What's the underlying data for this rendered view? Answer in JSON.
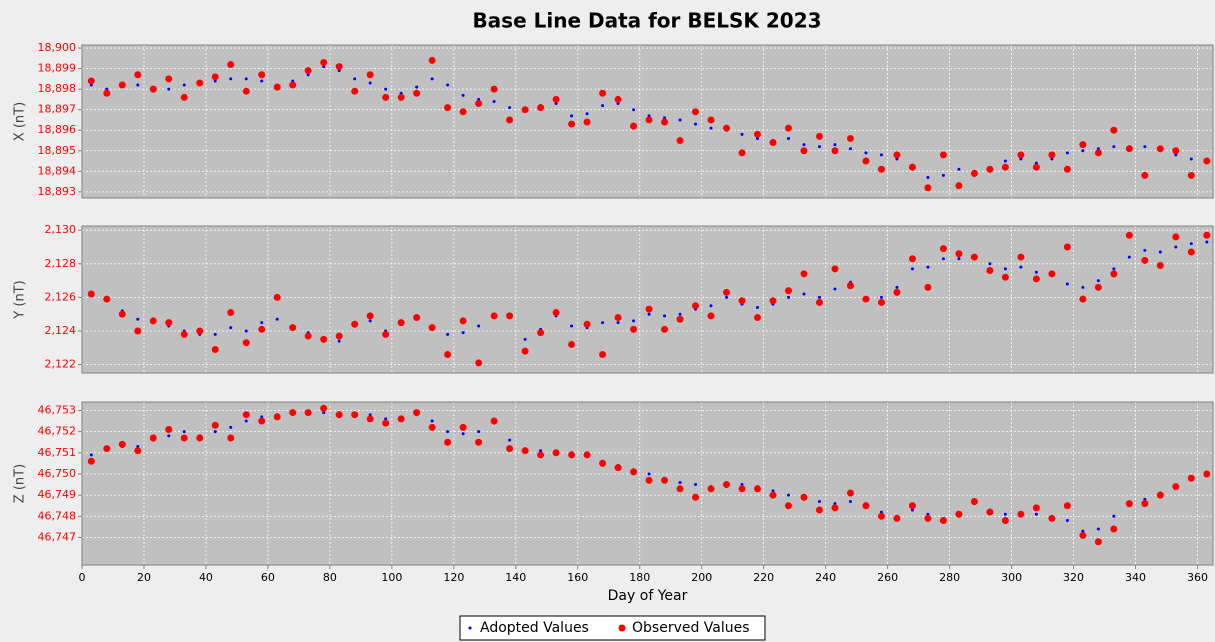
{
  "chart_data": [
    {
      "type": "scatter",
      "title": "Base Line Data for BELSK 2023",
      "ylabel": "X (nT)",
      "xlim": [
        0,
        365
      ],
      "ylim": [
        18892.7,
        18900.15
      ],
      "yticks": [
        {
          "value": 18893,
          "label": "18,893"
        },
        {
          "value": 18894,
          "label": "18,894"
        },
        {
          "value": 18895,
          "label": "18,895"
        },
        {
          "value": 18896,
          "label": "18,896"
        },
        {
          "value": 18897,
          "label": "18,897"
        },
        {
          "value": 18898,
          "label": "18,898"
        },
        {
          "value": 18899,
          "label": "18,899"
        },
        {
          "value": 18900,
          "label": "18,900"
        }
      ],
      "grid": true,
      "x": [
        3,
        8,
        13,
        18,
        23,
        28,
        33,
        38,
        43,
        48,
        53,
        58,
        63,
        68,
        73,
        78,
        83,
        88,
        93,
        98,
        103,
        108,
        113,
        118,
        123,
        128,
        133,
        138,
        143,
        148,
        153,
        158,
        163,
        168,
        173,
        178,
        183,
        188,
        193,
        198,
        203,
        208,
        213,
        218,
        223,
        228,
        233,
        238,
        243,
        248,
        253,
        258,
        263,
        268,
        273,
        278,
        283,
        288,
        293,
        298,
        303,
        308,
        313,
        318,
        323,
        328,
        333,
        338,
        343,
        348,
        353,
        358,
        363
      ],
      "series": [
        {
          "name": "Adopted Values",
          "color": "#0000ff",
          "values": [
            18898.2,
            18898.0,
            18898.3,
            18898.2,
            18897.9,
            18898.0,
            18898.2,
            18898.3,
            18898.4,
            18898.5,
            18898.5,
            18898.4,
            18898.2,
            18898.4,
            18898.7,
            18899.1,
            18898.9,
            18898.5,
            18898.3,
            18898.0,
            18897.8,
            18898.1,
            18898.5,
            18898.2,
            18897.7,
            18897.5,
            18897.4,
            18897.1,
            18897.0,
            18897.2,
            18897.3,
            18896.7,
            18896.8,
            18897.2,
            18897.3,
            18897.0,
            18896.7,
            18896.6,
            18896.5,
            18896.3,
            18896.1,
            18896.0,
            18895.8,
            18895.6,
            18895.5,
            18895.6,
            18895.3,
            18895.2,
            18895.3,
            18895.1,
            18894.9,
            18894.8,
            18894.6,
            18894.3,
            18893.7,
            18893.8,
            18894.1,
            18893.8,
            18894.0,
            18894.5,
            18894.6,
            18894.4,
            18894.6,
            18894.9,
            18895.0,
            18895.1,
            18895.2,
            18895.2,
            18895.2,
            18895.0,
            18894.8,
            18894.6,
            18894.5
          ]
        },
        {
          "name": "Observed Values",
          "color": "#ff0000",
          "values": [
            18898.4,
            18897.8,
            18898.2,
            18898.7,
            18898.0,
            18898.5,
            18897.6,
            18898.3,
            18898.6,
            18899.2,
            18897.9,
            18898.7,
            18898.1,
            18898.2,
            18898.9,
            18899.3,
            18899.1,
            18897.9,
            18898.7,
            18897.6,
            18897.6,
            18897.8,
            18899.4,
            18897.1,
            18896.9,
            18897.3,
            18898.0,
            18896.5,
            18897.0,
            18897.1,
            18897.5,
            18896.3,
            18896.4,
            18897.8,
            18897.5,
            18896.2,
            18896.5,
            18896.4,
            18895.5,
            18896.9,
            18896.5,
            18896.1,
            18894.9,
            18895.8,
            18895.4,
            18896.1,
            18895.0,
            18895.7,
            18895.0,
            18895.6,
            18894.5,
            18894.1,
            18894.8,
            18894.2,
            18893.2,
            18894.8,
            18893.3,
            18893.9,
            18894.1,
            18894.2,
            18894.8,
            18894.2,
            18894.8,
            18894.1,
            18895.3,
            18894.9,
            18896.0,
            18895.1,
            18893.8,
            18895.1,
            18895.0,
            18893.8,
            18894.5
          ]
        }
      ]
    },
    {
      "type": "scatter",
      "ylabel": "Y (nT)",
      "xlim": [
        0,
        365
      ],
      "ylim": [
        2121.5,
        2130.25
      ],
      "yticks": [
        {
          "value": 2122,
          "label": "2,122"
        },
        {
          "value": 2124,
          "label": "2,124"
        },
        {
          "value": 2126,
          "label": "2,126"
        },
        {
          "value": 2128,
          "label": "2,128"
        },
        {
          "value": 2130,
          "label": "2,130"
        }
      ],
      "grid": true,
      "x": [
        3,
        8,
        13,
        18,
        23,
        28,
        33,
        38,
        43,
        48,
        53,
        58,
        63,
        68,
        73,
        78,
        83,
        88,
        93,
        98,
        103,
        108,
        113,
        118,
        123,
        128,
        133,
        138,
        143,
        148,
        153,
        158,
        163,
        168,
        173,
        178,
        183,
        188,
        193,
        198,
        203,
        208,
        213,
        218,
        223,
        228,
        233,
        238,
        243,
        248,
        253,
        258,
        263,
        268,
        273,
        278,
        283,
        288,
        293,
        298,
        303,
        308,
        313,
        318,
        323,
        328,
        333,
        338,
        343,
        348,
        353,
        358,
        363
      ],
      "series": [
        {
          "name": "Adopted Values",
          "color": "#0000ff",
          "values": [
            2126.2,
            2126.0,
            2125.2,
            2124.7,
            2124.5,
            2124.3,
            2124.0,
            2123.8,
            2123.8,
            2124.2,
            2124.0,
            2124.5,
            2124.7,
            2124.3,
            2123.9,
            2123.5,
            2123.4,
            2124.5,
            2124.6,
            2124.0,
            2124.4,
            2124.7,
            2124.2,
            2123.8,
            2123.9,
            2124.3,
            2124.8,
            2124.8,
            2123.5,
            2124.1,
            2124.9,
            2124.3,
            2124.2,
            2124.5,
            2124.5,
            2124.6,
            2125.0,
            2124.9,
            2125.0,
            2125.3,
            2125.5,
            2126.0,
            2125.6,
            2125.4,
            2125.6,
            2126.0,
            2126.2,
            2126.0,
            2126.5,
            2126.9,
            2126.0,
            2126.0,
            2126.6,
            2127.7,
            2127.8,
            2128.3,
            2128.3,
            2128.3,
            2128.0,
            2127.7,
            2127.8,
            2127.5,
            2127.5,
            2126.8,
            2126.6,
            2127.0,
            2127.7,
            2128.4,
            2128.8,
            2128.7,
            2129.0,
            2129.2,
            2129.3
          ]
        },
        {
          "name": "Observed Values",
          "color": "#ff0000",
          "values": [
            2126.2,
            2125.9,
            2125.0,
            2124.0,
            2124.6,
            2124.5,
            2123.8,
            2124.0,
            2122.9,
            2125.1,
            2123.3,
            2124.1,
            2126.0,
            2124.2,
            2123.7,
            2123.5,
            2123.7,
            2124.4,
            2124.9,
            2123.8,
            2124.5,
            2124.8,
            2124.2,
            2122.6,
            2124.6,
            2122.1,
            2124.9,
            2124.9,
            2122.8,
            2123.9,
            2125.1,
            2123.2,
            2124.4,
            2122.6,
            2124.8,
            2124.1,
            2125.3,
            2124.1,
            2124.7,
            2125.5,
            2124.9,
            2126.3,
            2125.8,
            2124.8,
            2125.8,
            2126.4,
            2127.4,
            2125.7,
            2127.7,
            2126.7,
            2125.9,
            2125.7,
            2126.3,
            2128.3,
            2126.6,
            2128.9,
            2128.6,
            2128.4,
            2127.6,
            2127.2,
            2128.4,
            2127.1,
            2127.4,
            2129.0,
            2125.9,
            2126.6,
            2127.4,
            2129.7,
            2128.2,
            2127.9,
            2129.6,
            2128.7,
            2129.7
          ]
        }
      ]
    },
    {
      "type": "scatter",
      "ylabel": "Z (nT)",
      "xlabel": "Day of Year",
      "xlim": [
        0,
        365
      ],
      "ylim": [
        46745.7,
        46753.4
      ],
      "xticks": [
        0,
        20,
        40,
        60,
        80,
        100,
        120,
        140,
        160,
        180,
        200,
        220,
        240,
        260,
        280,
        300,
        320,
        340,
        360
      ],
      "yticks": [
        {
          "value": 46747,
          "label": "46,747"
        },
        {
          "value": 46748,
          "label": "46,748"
        },
        {
          "value": 46749,
          "label": "46,749"
        },
        {
          "value": 46750,
          "label": "46,750"
        },
        {
          "value": 46751,
          "label": "46,751"
        },
        {
          "value": 46752,
          "label": "46,752"
        },
        {
          "value": 46753,
          "label": "46,753"
        }
      ],
      "grid": true,
      "x": [
        3,
        8,
        13,
        18,
        23,
        28,
        33,
        38,
        43,
        48,
        53,
        58,
        63,
        68,
        73,
        78,
        83,
        88,
        93,
        98,
        103,
        108,
        113,
        118,
        123,
        128,
        133,
        138,
        143,
        148,
        153,
        158,
        163,
        168,
        173,
        178,
        183,
        188,
        193,
        198,
        203,
        208,
        213,
        218,
        223,
        228,
        233,
        238,
        243,
        248,
        253,
        258,
        263,
        268,
        273,
        278,
        283,
        288,
        293,
        298,
        303,
        308,
        313,
        318,
        323,
        328,
        333,
        338,
        343,
        348,
        353,
        358,
        363
      ],
      "series": [
        {
          "name": "Adopted Values",
          "color": "#0000ff",
          "values": [
            46750.9,
            46751.2,
            46751.3,
            46751.3,
            46751.6,
            46751.8,
            46752.0,
            46751.8,
            46752.0,
            46752.2,
            46752.5,
            46752.7,
            46752.8,
            46752.9,
            46752.9,
            46752.9,
            46752.9,
            46752.8,
            46752.8,
            46752.6,
            46752.6,
            46752.8,
            46752.5,
            46752.0,
            46751.9,
            46752.0,
            46752.4,
            46751.6,
            46751.2,
            46751.1,
            46751.1,
            46751.0,
            46751.0,
            46750.6,
            46750.4,
            46750.2,
            46750.0,
            46749.8,
            46749.6,
            46749.5,
            46749.4,
            46749.4,
            46749.5,
            46749.4,
            46749.2,
            46749.0,
            46748.8,
            46748.7,
            46748.6,
            46748.7,
            46748.6,
            46748.2,
            46748.0,
            46748.3,
            46748.1,
            46747.9,
            46748.0,
            46748.6,
            46748.3,
            46748.1,
            46748.1,
            46748.1,
            46747.9,
            46747.8,
            46747.3,
            46747.4,
            46748.0,
            46748.5,
            46748.8,
            46749.1,
            46749.4,
            46749.8,
            46750.0
          ]
        },
        {
          "name": "Observed Values",
          "color": "#ff0000",
          "values": [
            46750.6,
            46751.2,
            46751.4,
            46751.1,
            46751.7,
            46752.1,
            46751.7,
            46751.7,
            46752.3,
            46751.7,
            46752.8,
            46752.5,
            46752.7,
            46752.9,
            46752.9,
            46753.1,
            46752.8,
            46752.8,
            46752.6,
            46752.4,
            46752.6,
            46752.9,
            46752.2,
            46751.5,
            46752.2,
            46751.5,
            46752.5,
            46751.2,
            46751.1,
            46750.9,
            46751.0,
            46750.9,
            46750.9,
            46750.5,
            46750.3,
            46750.1,
            46749.7,
            46749.7,
            46749.3,
            46748.9,
            46749.3,
            46749.5,
            46749.3,
            46749.3,
            46749.0,
            46748.5,
            46748.9,
            46748.3,
            46748.4,
            46749.1,
            46748.5,
            46748.0,
            46747.9,
            46748.5,
            46747.9,
            46747.8,
            46748.1,
            46748.7,
            46748.2,
            46747.8,
            46748.1,
            46748.4,
            46747.9,
            46748.5,
            46747.1,
            46746.8,
            46747.4,
            46748.6,
            46748.6,
            46749.0,
            46749.4,
            46749.8,
            46750.0
          ]
        }
      ]
    }
  ]
}
